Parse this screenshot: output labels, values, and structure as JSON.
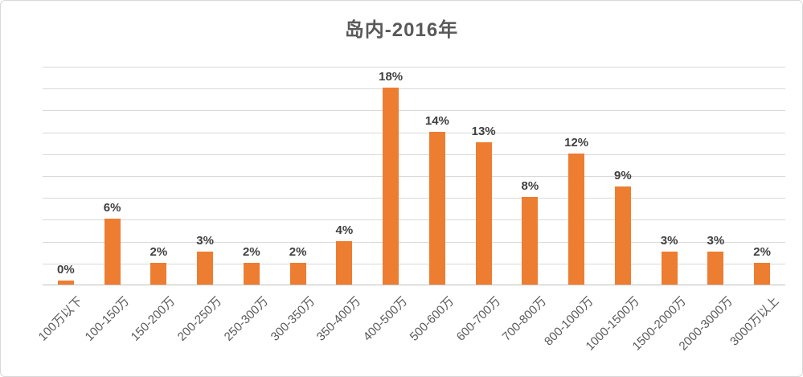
{
  "title": "岛内-2016年",
  "colors": {
    "bar": "#ED7D31",
    "gridline": "#D9D9D9",
    "axis_line": "#BFBFBF",
    "title_text": "#595959",
    "value_label_text": "#404040",
    "tick_label_text": "#595959",
    "frame_border": "#D8D8D8",
    "background": "#FFFFFF"
  },
  "chart_data": {
    "type": "bar",
    "title": "岛内-2016年",
    "categories": [
      "100万以下",
      "100-150万",
      "150-200万",
      "200-250万",
      "250-300万",
      "300-350万",
      "350-400万",
      "400-500万",
      "500-600万",
      "600-700万",
      "700-800万",
      "800-1000万",
      "1000-1500万",
      "1500-2000万",
      "2000-3000万",
      "3000万以上"
    ],
    "values": [
      0,
      6,
      2,
      3,
      2,
      2,
      4,
      18,
      14,
      13,
      8,
      12,
      9,
      3,
      3,
      2
    ],
    "value_labels": [
      "0%",
      "6%",
      "2%",
      "3%",
      "2%",
      "2%",
      "4%",
      "18%",
      "14%",
      "13%",
      "8%",
      "12%",
      "9%",
      "3%",
      "3%",
      "2%"
    ],
    "xlabel": "",
    "ylabel": "",
    "ylim": [
      0,
      20
    ],
    "gridline_interval": 2,
    "grid": true,
    "legend": false,
    "y_tick_labels_visible": false,
    "x_tick_rotation_deg": 45,
    "bar_color": "#ED7D31"
  }
}
